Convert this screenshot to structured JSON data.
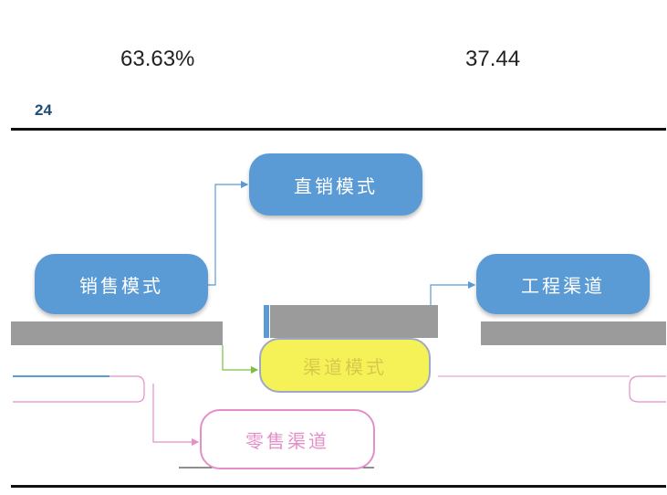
{
  "stats": {
    "left": "63.63%",
    "right": "37.44"
  },
  "page_number": "24",
  "diagram": {
    "nodes": {
      "direct": "直销模式",
      "sales": "销售模式",
      "engineering": "工程渠道",
      "channel": "渠道模式",
      "retail": "零售渠道"
    },
    "colors": {
      "node_blue": "#5b9bd5",
      "node_yellow": "#f5f257",
      "retail_border": "#e58fc8",
      "gray_band": "#9b9b9b",
      "rule": "#111111"
    }
  }
}
